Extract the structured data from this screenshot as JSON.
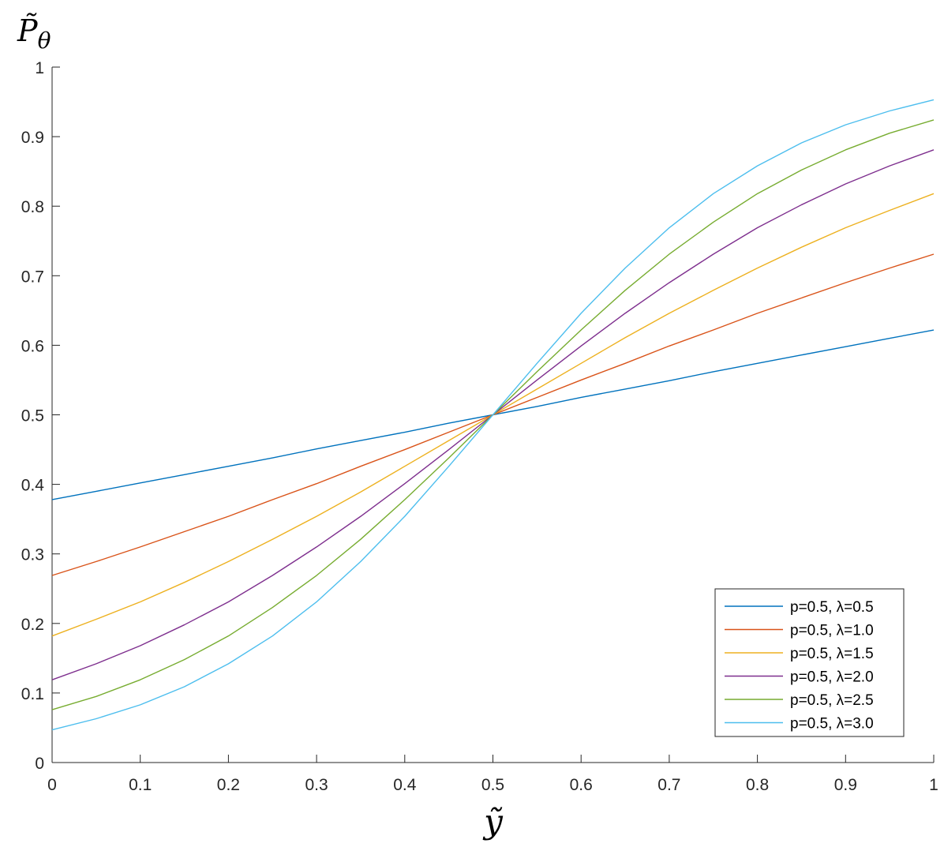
{
  "chart_data": {
    "type": "line",
    "xlabel": "ỹ",
    "ylabel": {
      "base": "P̃",
      "sub": "θ"
    },
    "xlim": [
      0,
      1
    ],
    "ylim": [
      0,
      1
    ],
    "xticks": [
      "0",
      "0.1",
      "0.2",
      "0.3",
      "0.4",
      "0.5",
      "0.6",
      "0.7",
      "0.8",
      "0.9",
      "1"
    ],
    "yticks": [
      "0",
      "0.1",
      "0.2",
      "0.3",
      "0.4",
      "0.5",
      "0.6",
      "0.7",
      "0.8",
      "0.9",
      "1"
    ],
    "grid": false,
    "legend_position": "bottom-right",
    "x": [
      0,
      0.05,
      0.1,
      0.15,
      0.2,
      0.25,
      0.3,
      0.35,
      0.4,
      0.45,
      0.5,
      0.55,
      0.6,
      0.65,
      0.7,
      0.75,
      0.8,
      0.85,
      0.9,
      0.95,
      1
    ],
    "series": [
      {
        "name": "p=0.5, λ=0.5",
        "color": "#0072BD",
        "values": [
          0.378,
          0.39,
          0.402,
          0.414,
          0.426,
          0.438,
          0.451,
          0.463,
          0.475,
          0.488,
          0.5,
          0.512,
          0.525,
          0.537,
          0.549,
          0.562,
          0.574,
          0.586,
          0.598,
          0.61,
          0.622
        ]
      },
      {
        "name": "p=0.5, λ=1.0",
        "color": "#D95319",
        "values": [
          0.269,
          0.289,
          0.31,
          0.332,
          0.354,
          0.378,
          0.401,
          0.426,
          0.45,
          0.475,
          0.5,
          0.525,
          0.55,
          0.574,
          0.599,
          0.622,
          0.646,
          0.668,
          0.69,
          0.711,
          0.731
        ]
      },
      {
        "name": "p=0.5, λ=1.5",
        "color": "#EDB120",
        "values": [
          0.182,
          0.206,
          0.231,
          0.259,
          0.289,
          0.321,
          0.354,
          0.389,
          0.426,
          0.463,
          0.5,
          0.537,
          0.574,
          0.611,
          0.646,
          0.679,
          0.711,
          0.741,
          0.769,
          0.794,
          0.818
        ]
      },
      {
        "name": "p=0.5, λ=2.0",
        "color": "#7E2F8E",
        "values": [
          0.119,
          0.142,
          0.168,
          0.198,
          0.231,
          0.269,
          0.31,
          0.354,
          0.401,
          0.45,
          0.5,
          0.55,
          0.599,
          0.646,
          0.69,
          0.731,
          0.769,
          0.802,
          0.832,
          0.858,
          0.881
        ]
      },
      {
        "name": "p=0.5, λ=2.5",
        "color": "#77AC30",
        "values": [
          0.076,
          0.095,
          0.119,
          0.148,
          0.182,
          0.223,
          0.269,
          0.321,
          0.378,
          0.438,
          0.5,
          0.562,
          0.622,
          0.679,
          0.731,
          0.777,
          0.818,
          0.852,
          0.881,
          0.905,
          0.924
        ]
      },
      {
        "name": "p=0.5, λ=3.0",
        "color": "#4DBEEE",
        "values": [
          0.047,
          0.063,
          0.083,
          0.109,
          0.142,
          0.182,
          0.231,
          0.289,
          0.354,
          0.426,
          0.5,
          0.574,
          0.646,
          0.711,
          0.769,
          0.818,
          0.858,
          0.891,
          0.917,
          0.937,
          0.953
        ]
      }
    ]
  }
}
